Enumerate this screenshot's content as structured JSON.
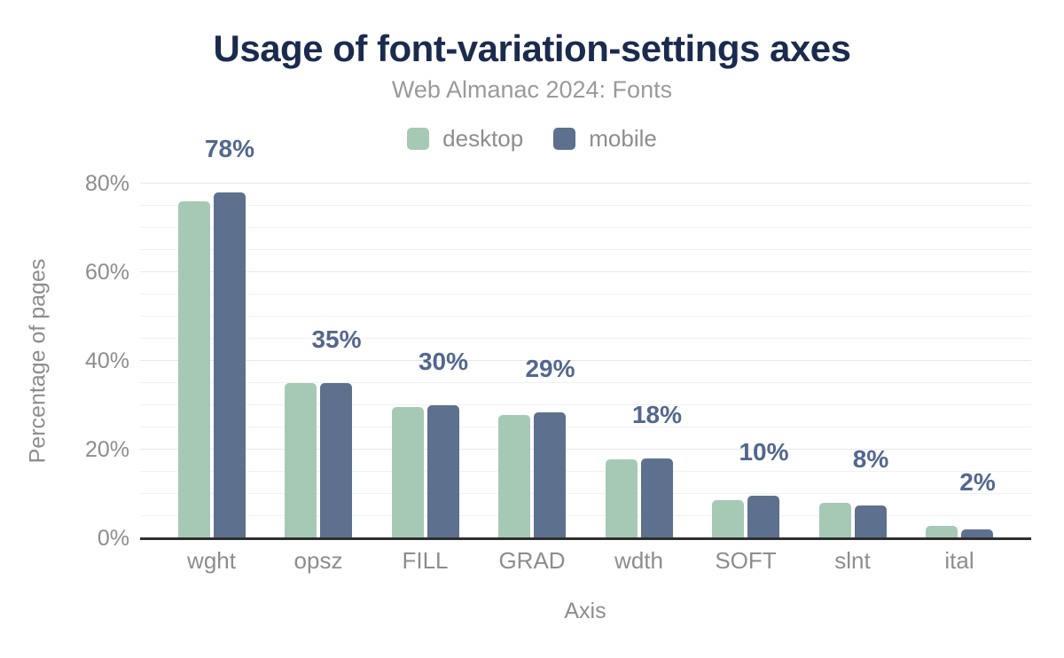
{
  "colors": {
    "title": "#1b2b4e",
    "subtitle": "#9a9a9a",
    "axis_text": "#8d8d8d",
    "bar_label": "#53678e",
    "axis_line": "#2f2f2f",
    "grid_minor": "#f0f0f0",
    "grid_major": "#e8e8e8",
    "desktop": "#a6c9b6",
    "mobile": "#5d708e"
  },
  "legend": [
    {
      "label": "desktop",
      "color": "#a6c9b6"
    },
    {
      "label": "mobile",
      "color": "#5d708e"
    }
  ],
  "chart_data": {
    "type": "bar",
    "title": "Usage of font-variation-settings axes",
    "subtitle": "Web Almanac 2024: Fonts",
    "categories": [
      "wght",
      "opsz",
      "FILL",
      "GRAD",
      "wdth",
      "SOFT",
      "slnt",
      "ital"
    ],
    "series": [
      {
        "name": "desktop",
        "color": "#a6c9b6",
        "values": [
          76,
          35,
          29.7,
          27.8,
          17.9,
          8.7,
          8,
          2.9
        ]
      },
      {
        "name": "mobile",
        "color": "#5d708e",
        "values": [
          78,
          35,
          30.1,
          28.5,
          18,
          9.6,
          7.5,
          2.1
        ]
      }
    ],
    "bar_labels": [
      "78%",
      "35%",
      "30%",
      "29%",
      "18%",
      "10%",
      "8%",
      "2%"
    ],
    "bar_labels_refer_to": "mobile",
    "xlabel": "Axis",
    "ylabel": "Percentage of pages",
    "ylim": [
      0,
      80
    ],
    "yticks": [
      {
        "value": 0,
        "label": "0%"
      },
      {
        "value": 20,
        "label": "20%"
      },
      {
        "value": 40,
        "label": "40%"
      },
      {
        "value": 60,
        "label": "60%"
      },
      {
        "value": 80,
        "label": "80%"
      }
    ],
    "grid": {
      "minor_step": 5,
      "major_step": 20,
      "visible": true
    },
    "legend_position": "top-center"
  }
}
